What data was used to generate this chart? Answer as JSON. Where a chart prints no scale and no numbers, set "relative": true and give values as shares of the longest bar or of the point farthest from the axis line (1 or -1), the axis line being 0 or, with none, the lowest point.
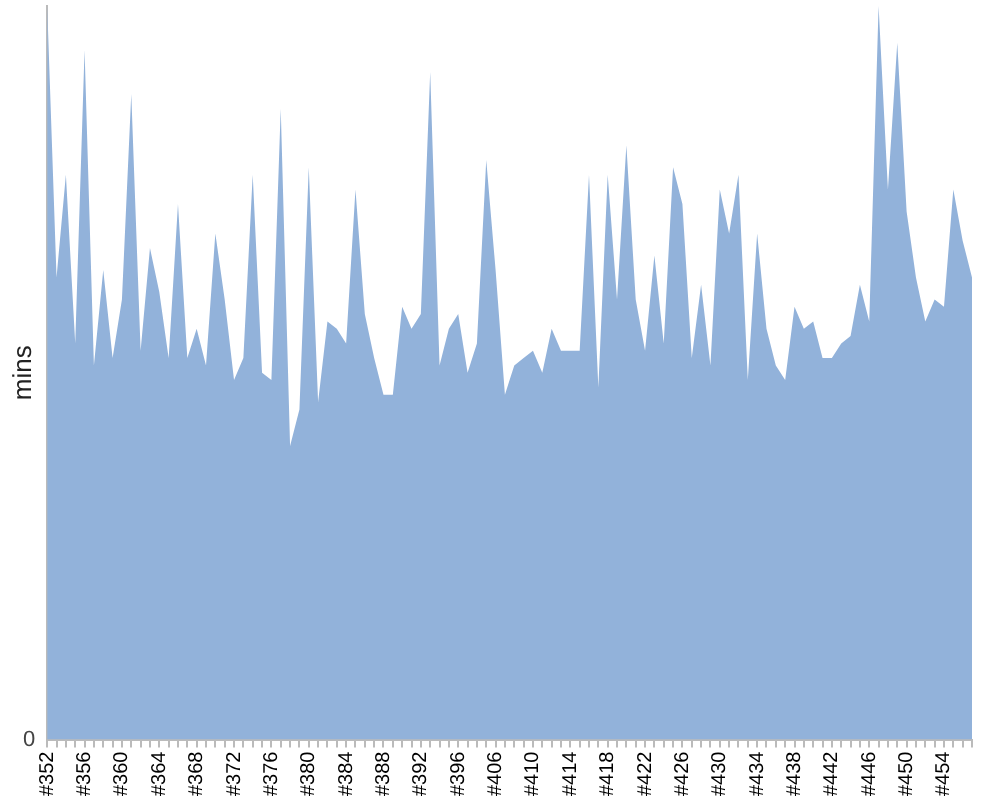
{
  "chart_data": {
    "type": "area",
    "ylabel": "mins",
    "relative": true,
    "legend": false,
    "marker": "none",
    "annotations": [
      "0"
    ],
    "categories": [
      "#352",
      null,
      null,
      null,
      "#356",
      null,
      null,
      null,
      "#360",
      null,
      null,
      null,
      "#364",
      null,
      null,
      null,
      "#368",
      null,
      null,
      null,
      "#372",
      null,
      null,
      null,
      "#376",
      null,
      null,
      null,
      "#380",
      null,
      null,
      null,
      "#384",
      null,
      null,
      null,
      "#388",
      null,
      null,
      null,
      "#392",
      null,
      null,
      null,
      "#396",
      null,
      null,
      null,
      "#406",
      null,
      null,
      null,
      "#410",
      null,
      null,
      null,
      "#414",
      null,
      null,
      null,
      "#418",
      null,
      null,
      null,
      "#422",
      null,
      null,
      null,
      "#426",
      null,
      null,
      null,
      "#430",
      null,
      null,
      null,
      "#434",
      null,
      null,
      null,
      "#438",
      null,
      null,
      null,
      "#442",
      null,
      null,
      null,
      "#446",
      null,
      null,
      null,
      "#450",
      null,
      null,
      null,
      "#454",
      null,
      null,
      null
    ],
    "series": [
      {
        "color": "#92b2da",
        "values": [
          1.0,
          0.63,
          0.77,
          0.54,
          0.94,
          0.51,
          0.64,
          0.52,
          0.6,
          0.88,
          0.53,
          0.67,
          0.61,
          0.52,
          0.73,
          0.52,
          0.56,
          0.51,
          0.69,
          0.6,
          0.49,
          0.52,
          0.77,
          0.5,
          0.49,
          0.86,
          0.4,
          0.45,
          0.78,
          0.46,
          0.57,
          0.56,
          0.54,
          0.75,
          0.58,
          0.52,
          0.47,
          0.47,
          0.59,
          0.56,
          0.58,
          0.91,
          0.51,
          0.56,
          0.58,
          0.5,
          0.54,
          0.79,
          0.64,
          0.47,
          0.51,
          0.52,
          0.53,
          0.5,
          0.56,
          0.53,
          0.53,
          0.53,
          0.77,
          0.48,
          0.77,
          0.6,
          0.81,
          0.6,
          0.53,
          0.66,
          0.54,
          0.78,
          0.73,
          0.52,
          0.62,
          0.51,
          0.75,
          0.69,
          0.77,
          0.49,
          0.69,
          0.56,
          0.51,
          0.49,
          0.59,
          0.56,
          0.57,
          0.52,
          0.52,
          0.54,
          0.55,
          0.62,
          0.57,
          1.0,
          0.75,
          0.95,
          0.72,
          0.63,
          0.57,
          0.6,
          0.59,
          0.75,
          0.68,
          0.63
        ]
      }
    ]
  }
}
